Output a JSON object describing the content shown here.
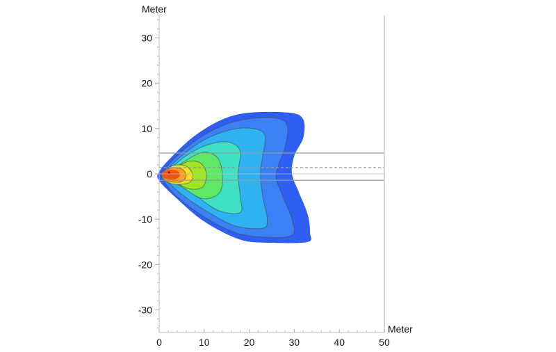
{
  "chart_data": {
    "type": "heatmap",
    "title": "",
    "xlabel": "Meter",
    "ylabel": "Meter",
    "xlim": [
      0,
      50
    ],
    "ylim": [
      -35,
      35
    ],
    "xticks": [
      0,
      10,
      20,
      30,
      40,
      50
    ],
    "yticks": [
      30,
      20,
      10,
      0,
      -10,
      -20,
      -30
    ],
    "minor_tick_step": 2,
    "grid": false,
    "reference_lines": [
      {
        "y": 4.6,
        "style": "solid"
      },
      {
        "y": 1.4,
        "style": "dashed"
      },
      {
        "y": 0,
        "style": "solid"
      },
      {
        "y": -1.4,
        "style": "solid"
      }
    ],
    "peak": [
      2.2,
      0.3
    ],
    "bands": [
      {
        "color": "#2f5ef2",
        "contour": false,
        "points": [
          [
            0,
            0.5
          ],
          [
            3,
            4
          ],
          [
            8,
            8.5
          ],
          [
            14,
            12
          ],
          [
            20,
            13.5
          ],
          [
            29,
            13.5
          ],
          [
            32,
            12
          ],
          [
            32,
            8
          ],
          [
            30,
            4
          ],
          [
            29.5,
            0
          ],
          [
            31,
            -4
          ],
          [
            33,
            -9
          ],
          [
            33.5,
            -13
          ],
          [
            33,
            -15
          ],
          [
            25,
            -15.2
          ],
          [
            18,
            -14.5
          ],
          [
            10,
            -10.5
          ],
          [
            4,
            -5.5
          ],
          [
            0,
            -1.5
          ]
        ]
      },
      {
        "color": "#3c80f6",
        "contour": true,
        "points": [
          [
            1,
            0.5
          ],
          [
            4,
            4
          ],
          [
            9,
            8
          ],
          [
            15,
            11
          ],
          [
            21,
            12.3
          ],
          [
            26.5,
            12.2
          ],
          [
            28.5,
            10.5
          ],
          [
            28,
            6
          ],
          [
            26.5,
            2
          ],
          [
            26,
            -1
          ],
          [
            27.5,
            -5
          ],
          [
            29.5,
            -10
          ],
          [
            29.5,
            -13.5
          ],
          [
            24,
            -14
          ],
          [
            17,
            -13
          ],
          [
            10,
            -9.5
          ],
          [
            4,
            -5
          ],
          [
            1,
            -1.5
          ]
        ]
      },
      {
        "color": "#2fb2f2",
        "contour": true,
        "points": [
          [
            1.5,
            0.5
          ],
          [
            5,
            4
          ],
          [
            10,
            7.5
          ],
          [
            16,
            9.8
          ],
          [
            21,
            10
          ],
          [
            23.5,
            8.5
          ],
          [
            23,
            4
          ],
          [
            22.5,
            0
          ],
          [
            23,
            -5
          ],
          [
            24,
            -10
          ],
          [
            23,
            -12
          ],
          [
            17,
            -11.5
          ],
          [
            11,
            -8.5
          ],
          [
            5,
            -4.5
          ],
          [
            1.5,
            -1
          ]
        ]
      },
      {
        "color": "#3fe0c4",
        "contour": true,
        "points": [
          [
            2,
            0.5
          ],
          [
            6,
            4
          ],
          [
            11,
            6.5
          ],
          [
            15.5,
            7
          ],
          [
            18,
            5
          ],
          [
            17.5,
            0
          ],
          [
            18,
            -5
          ],
          [
            18,
            -8.5
          ],
          [
            13,
            -8
          ],
          [
            7,
            -4
          ],
          [
            2,
            -1
          ]
        ]
      },
      {
        "color": "#5fe866",
        "contour": true,
        "points": [
          [
            2.5,
            0.3
          ],
          [
            6,
            3
          ],
          [
            10,
            4.8
          ],
          [
            13,
            3.5
          ],
          [
            14,
            0
          ],
          [
            13.5,
            -4
          ],
          [
            10,
            -5.5
          ],
          [
            6,
            -3.5
          ],
          [
            2.5,
            -0.8
          ]
        ]
      },
      {
        "color": "#9fe624",
        "contour": true,
        "points": [
          [
            2.5,
            0.2
          ],
          [
            6,
            2.6
          ],
          [
            9,
            2.5
          ],
          [
            10.5,
            0
          ],
          [
            9.5,
            -3
          ],
          [
            6,
            -3.1
          ],
          [
            2.5,
            -0.6
          ]
        ]
      },
      {
        "color": "#f2e21e",
        "contour": true,
        "points": [
          [
            1,
            0
          ],
          [
            3,
            1.8
          ],
          [
            6,
            1.7
          ],
          [
            7.5,
            -0.3
          ],
          [
            6.5,
            -2
          ],
          [
            3,
            -2.2
          ],
          [
            0.8,
            -1
          ]
        ]
      },
      {
        "color": "#f8a020",
        "contour": true,
        "points": [
          [
            0.5,
            0
          ],
          [
            2.5,
            1.3
          ],
          [
            5,
            1.1
          ],
          [
            6,
            -0.3
          ],
          [
            5,
            -1.7
          ],
          [
            2,
            -1.6
          ]
        ]
      },
      {
        "color": "#ef5412",
        "contour": false,
        "points": [
          [
            0.6,
            0
          ],
          [
            2,
            0.9
          ],
          [
            4,
            0.7
          ],
          [
            4.6,
            -0.3
          ],
          [
            3.6,
            -1.2
          ],
          [
            1.5,
            -1.1
          ]
        ]
      }
    ]
  }
}
